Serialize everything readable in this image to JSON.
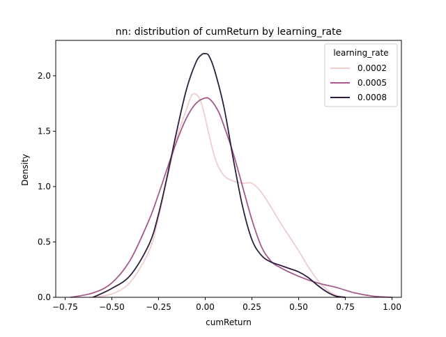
{
  "chart_data": {
    "type": "line",
    "title": "nn: distribution of cumReturn by learning_rate",
    "xlabel": "cumReturn",
    "ylabel": "Density",
    "xlim": [
      -0.8,
      1.05
    ],
    "ylim": [
      0.0,
      2.32
    ],
    "x_ticks": [
      -0.75,
      -0.5,
      -0.25,
      0.0,
      0.25,
      0.5,
      0.75,
      1.0
    ],
    "x_tick_labels": [
      "−0.75",
      "−0.50",
      "−0.25",
      "0.00",
      "0.25",
      "0.50",
      "0.75",
      "1.00"
    ],
    "y_ticks": [
      0.0,
      0.5,
      1.0,
      1.5,
      2.0
    ],
    "y_tick_labels": [
      "0.0",
      "0.5",
      "1.0",
      "1.5",
      "2.0"
    ],
    "grid": false,
    "legend": {
      "title": "learning_rate",
      "position": "top-right"
    },
    "series": [
      {
        "name": "0.0002",
        "color": "#eecdcd",
        "points": [
          [
            -0.62,
            0.0
          ],
          [
            -0.5,
            0.03
          ],
          [
            -0.4,
            0.14
          ],
          [
            -0.3,
            0.42
          ],
          [
            -0.25,
            0.72
          ],
          [
            -0.2,
            1.1
          ],
          [
            -0.15,
            1.45
          ],
          [
            -0.1,
            1.7
          ],
          [
            -0.07,
            1.83
          ],
          [
            -0.04,
            1.82
          ],
          [
            -0.02,
            1.75
          ],
          [
            0.0,
            1.62
          ],
          [
            0.03,
            1.4
          ],
          [
            0.06,
            1.22
          ],
          [
            0.1,
            1.1
          ],
          [
            0.15,
            1.05
          ],
          [
            0.2,
            1.03
          ],
          [
            0.25,
            1.03
          ],
          [
            0.3,
            0.95
          ],
          [
            0.35,
            0.82
          ],
          [
            0.4,
            0.68
          ],
          [
            0.45,
            0.55
          ],
          [
            0.5,
            0.42
          ],
          [
            0.55,
            0.28
          ],
          [
            0.6,
            0.16
          ],
          [
            0.65,
            0.07
          ],
          [
            0.7,
            0.02
          ],
          [
            0.75,
            0.0
          ]
        ]
      },
      {
        "name": "0.0005",
        "color": "#a5598a",
        "points": [
          [
            -0.72,
            0.0
          ],
          [
            -0.6,
            0.04
          ],
          [
            -0.5,
            0.13
          ],
          [
            -0.4,
            0.34
          ],
          [
            -0.3,
            0.7
          ],
          [
            -0.25,
            0.93
          ],
          [
            -0.2,
            1.18
          ],
          [
            -0.15,
            1.42
          ],
          [
            -0.1,
            1.62
          ],
          [
            -0.05,
            1.75
          ],
          [
            0.0,
            1.8
          ],
          [
            0.03,
            1.78
          ],
          [
            0.07,
            1.68
          ],
          [
            0.1,
            1.55
          ],
          [
            0.15,
            1.3
          ],
          [
            0.2,
            1.0
          ],
          [
            0.25,
            0.7
          ],
          [
            0.3,
            0.46
          ],
          [
            0.35,
            0.33
          ],
          [
            0.4,
            0.27
          ],
          [
            0.5,
            0.19
          ],
          [
            0.6,
            0.13
          ],
          [
            0.7,
            0.09
          ],
          [
            0.8,
            0.04
          ],
          [
            0.9,
            0.01
          ],
          [
            1.0,
            0.0
          ]
        ]
      },
      {
        "name": "0.0008",
        "color": "#2d1e3e",
        "points": [
          [
            -0.6,
            0.0
          ],
          [
            -0.5,
            0.08
          ],
          [
            -0.4,
            0.2
          ],
          [
            -0.3,
            0.48
          ],
          [
            -0.25,
            0.75
          ],
          [
            -0.2,
            1.12
          ],
          [
            -0.15,
            1.52
          ],
          [
            -0.1,
            1.88
          ],
          [
            -0.05,
            2.12
          ],
          [
            -0.02,
            2.19
          ],
          [
            0.0,
            2.2
          ],
          [
            0.02,
            2.18
          ],
          [
            0.05,
            2.05
          ],
          [
            0.1,
            1.72
          ],
          [
            0.15,
            1.25
          ],
          [
            0.2,
            0.82
          ],
          [
            0.25,
            0.52
          ],
          [
            0.3,
            0.38
          ],
          [
            0.35,
            0.32
          ],
          [
            0.4,
            0.29
          ],
          [
            0.45,
            0.26
          ],
          [
            0.5,
            0.23
          ],
          [
            0.55,
            0.18
          ],
          [
            0.6,
            0.11
          ],
          [
            0.65,
            0.05
          ],
          [
            0.7,
            0.01
          ],
          [
            0.75,
            0.0
          ]
        ]
      }
    ]
  }
}
